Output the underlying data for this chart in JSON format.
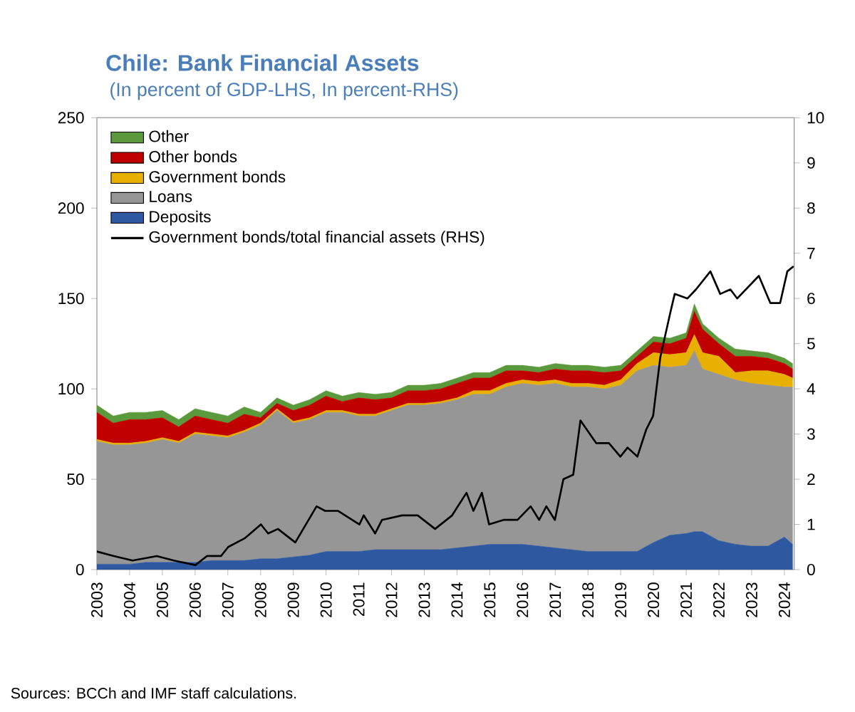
{
  "chart_data": {
    "type": "area",
    "title": "Chile: Bank Financial Assets",
    "subtitle": "(In percent of GDP-LHS, In percent-RHS)",
    "annotations": [
      "Sources: BCCh and IMF staff calculations."
    ],
    "stacked": true,
    "legend": "top left",
    "marker": "none",
    "x": [
      2003,
      2003.5,
      2004,
      2004.5,
      2005,
      2005.5,
      2006,
      2006.5,
      2007,
      2007.5,
      2008,
      2008.5,
      2009,
      2009.5,
      2010,
      2010.5,
      2011,
      2011.5,
      2012,
      2012.5,
      2013,
      2013.5,
      2014,
      2014.5,
      2015,
      2015.5,
      2016,
      2016.5,
      2017,
      2017.5,
      2018,
      2018.5,
      2019,
      2019.5,
      2020,
      2020.5,
      2021,
      2021.25,
      2021.5,
      2022,
      2022.5,
      2023,
      2023.5,
      2024,
      2024.25
    ],
    "xlim": [
      2003,
      2024.3
    ],
    "xticks": [
      2003,
      2004,
      2005,
      2006,
      2007,
      2008,
      2009,
      2010,
      2011,
      2012,
      2013,
      2014,
      2015,
      2016,
      2017,
      2018,
      2019,
      2020,
      2021,
      2022,
      2023,
      2024
    ],
    "ylim": [
      0,
      250
    ],
    "yticks": [
      0,
      50,
      100,
      150,
      200,
      250
    ],
    "y2lim": [
      0,
      10
    ],
    "y2ticks": [
      0,
      1,
      2,
      3,
      4,
      5,
      6,
      7,
      8,
      9,
      10
    ],
    "series": [
      {
        "name": "Deposits",
        "color": "#2e58a0",
        "values": [
          3,
          3,
          3,
          4,
          4,
          4,
          4,
          5,
          5,
          5,
          6,
          6,
          7,
          8,
          10,
          10,
          10,
          11,
          11,
          11,
          11,
          11,
          12,
          13,
          14,
          14,
          14,
          13,
          12,
          11,
          10,
          10,
          10,
          10,
          15,
          19,
          20,
          21,
          21,
          16,
          14,
          13,
          13,
          18,
          14
        ]
      },
      {
        "name": "Loans",
        "color": "#969696",
        "values": [
          68,
          66,
          66,
          66,
          68,
          66,
          71,
          69,
          68,
          71,
          74,
          82,
          74,
          75,
          77,
          77,
          75,
          74,
          77,
          80,
          80,
          81,
          82,
          84,
          83,
          87,
          89,
          89,
          91,
          90,
          91,
          90,
          92,
          100,
          98,
          93,
          93,
          100,
          90,
          92,
          91,
          90,
          89,
          83,
          87
        ]
      },
      {
        "name": "Government bonds",
        "color": "#e8b000",
        "values": [
          1,
          1,
          1,
          1,
          1,
          1,
          1,
          1,
          1,
          1,
          1,
          1,
          1,
          1,
          1,
          1,
          1,
          1,
          1,
          1,
          1,
          1,
          1,
          2,
          2,
          2,
          2,
          2,
          2,
          2,
          2,
          2,
          3,
          4,
          7,
          7,
          7,
          9,
          9,
          10,
          4,
          7,
          8,
          7,
          5
        ]
      },
      {
        "name": "Other bonds",
        "color": "#c00000",
        "values": [
          15,
          11,
          13,
          12,
          11,
          8,
          9,
          8,
          7,
          9,
          3,
          3,
          6,
          7,
          8,
          5,
          9,
          8,
          6,
          7,
          7,
          7,
          8,
          7,
          7,
          7,
          5,
          5,
          6,
          7,
          7,
          7,
          5,
          4,
          6,
          6,
          8,
          13,
          13,
          7,
          9,
          8,
          7,
          6,
          5
        ]
      },
      {
        "name": "Other",
        "color": "#5b9a3c",
        "values": [
          4,
          4,
          4,
          4,
          4,
          4,
          4,
          4,
          4,
          4,
          3,
          3,
          3,
          3,
          3,
          3,
          3,
          3,
          3,
          3,
          3,
          3,
          3,
          3,
          3,
          3,
          3,
          3,
          3,
          3,
          3,
          3,
          3,
          3,
          3,
          3,
          3,
          4,
          3,
          3,
          4,
          3,
          3,
          3,
          3
        ]
      },
      {
        "name": "Government bonds/total financial assets (RHS)",
        "type": "line",
        "axis": "y2",
        "color": "#000000",
        "x": [
          2003,
          2003.52,
          2004.09,
          2004.83,
          2005.35,
          2006.01,
          2006.36,
          2006.79,
          2007.01,
          2007.53,
          2008.01,
          2008.23,
          2008.53,
          2009.06,
          2009.71,
          2009.97,
          2010.36,
          2011.02,
          2011.15,
          2011.5,
          2011.71,
          2012.32,
          2012.8,
          2013.33,
          2013.85,
          2014.29,
          2014.5,
          2014.76,
          2014.98,
          2015.42,
          2015.85,
          2016.25,
          2016.51,
          2016.73,
          2016.99,
          2017.25,
          2017.55,
          2017.77,
          2018.25,
          2018.64,
          2018.99,
          2019.21,
          2019.51,
          2019.78,
          2019.99,
          2020.21,
          2020.52,
          2020.65,
          2021.04,
          2021.3,
          2021.74,
          2022.04,
          2022.35,
          2022.56,
          2023.22,
          2023.57,
          2023.87,
          2024.09,
          2024.26
        ],
        "values": [
          0.4,
          0.3,
          0.2,
          0.3,
          0.2,
          0.1,
          0.3,
          0.3,
          0.5,
          0.7,
          1.0,
          0.8,
          0.9,
          0.6,
          1.4,
          1.3,
          1.3,
          1.0,
          1.2,
          0.8,
          1.1,
          1.2,
          1.2,
          0.9,
          1.2,
          1.7,
          1.3,
          1.7,
          1.0,
          1.1,
          1.1,
          1.4,
          1.1,
          1.4,
          1.1,
          2.0,
          2.1,
          3.3,
          2.8,
          2.8,
          2.5,
          2.7,
          2.5,
          3.1,
          3.4,
          4.7,
          5.7,
          6.1,
          6.0,
          6.2,
          6.6,
          6.1,
          6.2,
          6.0,
          6.5,
          5.9,
          5.9,
          6.6,
          6.7
        ]
      }
    ]
  }
}
